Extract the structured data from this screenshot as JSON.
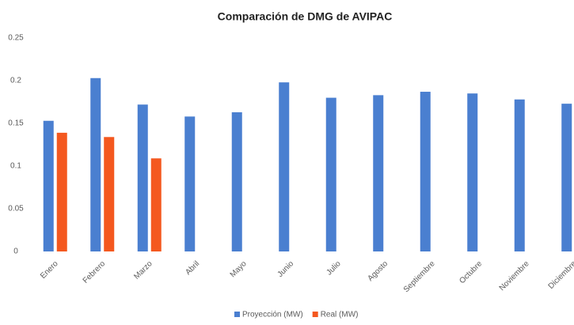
{
  "chart_data": {
    "type": "bar",
    "title": "Comparación de DMG de AVIPAC",
    "categories": [
      "Enero",
      "Febrero",
      "Marzo",
      "Abril",
      "Mayo",
      "Junio",
      "Julio",
      "Agosto",
      "Septiembre",
      "Octubre",
      "Noviembre",
      "Diciembre"
    ],
    "series": [
      {
        "name": "Proyección (MW)",
        "color": "#4a7fd0",
        "values": [
          0.153,
          0.203,
          0.172,
          0.158,
          0.163,
          0.198,
          0.18,
          0.183,
          0.187,
          0.185,
          0.178,
          0.173
        ]
      },
      {
        "name": "Real (MW)",
        "color": "#f4581f",
        "values": [
          0.139,
          0.134,
          0.109,
          null,
          null,
          null,
          null,
          null,
          null,
          null,
          null,
          null
        ]
      }
    ],
    "ylim": [
      0,
      0.25
    ],
    "yticks": [
      0,
      0.05,
      0.1,
      0.15,
      0.2,
      0.25
    ],
    "grid": false,
    "legend": "bottom"
  }
}
